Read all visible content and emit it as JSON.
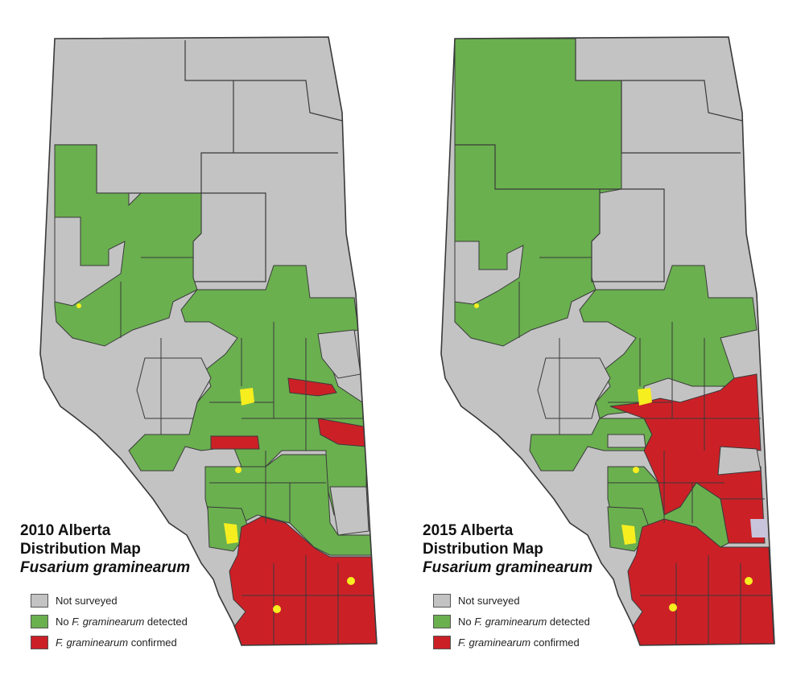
{
  "colors": {
    "not_surveyed": "#c3c3c3",
    "no_detection": "#6ab04f",
    "confirmed": "#cc2027",
    "urban": "#f7ee1f",
    "boundary": "#3a3a3a"
  },
  "maps": [
    {
      "id": "map-2010",
      "title": {
        "line1": "2010 Alberta",
        "line2": "Distribution Map",
        "line3": "Fusarium graminearum"
      },
      "legend": [
        {
          "key": "not_surveyed",
          "pre": "Not surveyed",
          "italic": "",
          "post": ""
        },
        {
          "key": "no_detection",
          "pre": "No ",
          "italic": "F. graminearum",
          "post": " detected"
        },
        {
          "key": "confirmed",
          "pre": "",
          "italic": "F. graminearum",
          "post": " confirmed"
        }
      ]
    },
    {
      "id": "map-2015",
      "title": {
        "line1": "2015 Alberta",
        "line2": "Distribution Map",
        "line3": "Fusarium graminearum"
      },
      "legend": [
        {
          "key": "not_surveyed",
          "pre": "Not surveyed",
          "italic": "",
          "post": ""
        },
        {
          "key": "no_detection",
          "pre": "No ",
          "italic": "F. graminearum",
          "post": " detected"
        },
        {
          "key": "confirmed",
          "pre": "",
          "italic": "F. graminearum",
          "post": " confirmed"
        }
      ]
    }
  ]
}
